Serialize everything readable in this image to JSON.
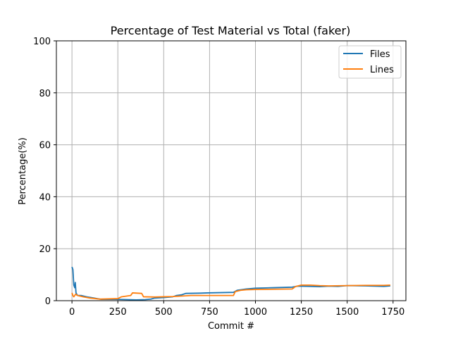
{
  "chart_data": {
    "type": "line",
    "title": "Percentage of Test Material vs Total (faker)",
    "xlabel": "Commit #",
    "ylabel": "Percentage(%)",
    "xlim": [
      -85,
      1820
    ],
    "ylim": [
      0,
      100
    ],
    "xticks": [
      0,
      250,
      500,
      750,
      1000,
      1250,
      1500,
      1750
    ],
    "yticks": [
      0,
      20,
      40,
      60,
      80,
      100
    ],
    "grid": true,
    "legend_position": "top-right",
    "series": [
      {
        "name": "Files",
        "color": "#1f77b4",
        "points": [
          [
            0,
            13
          ],
          [
            5,
            12
          ],
          [
            10,
            6
          ],
          [
            15,
            5
          ],
          [
            18,
            7
          ],
          [
            22,
            3
          ],
          [
            30,
            2
          ],
          [
            50,
            2
          ],
          [
            80,
            1.5
          ],
          [
            120,
            1
          ],
          [
            160,
            0.5
          ],
          [
            250,
            0.5
          ],
          [
            300,
            0.4
          ],
          [
            350,
            0.3
          ],
          [
            400,
            0.4
          ],
          [
            430,
            0.6
          ],
          [
            450,
            1.0
          ],
          [
            500,
            1.2
          ],
          [
            550,
            1.5
          ],
          [
            570,
            2.0
          ],
          [
            600,
            2.3
          ],
          [
            620,
            2.8
          ],
          [
            700,
            2.9
          ],
          [
            740,
            3.0
          ],
          [
            880,
            3.2
          ],
          [
            900,
            4.0
          ],
          [
            950,
            4.5
          ],
          [
            1000,
            4.8
          ],
          [
            1100,
            5.0
          ],
          [
            1200,
            5.2
          ],
          [
            1230,
            5.6
          ],
          [
            1300,
            5.5
          ],
          [
            1350,
            5.4
          ],
          [
            1400,
            5.6
          ],
          [
            1450,
            5.5
          ],
          [
            1500,
            5.8
          ],
          [
            1600,
            5.7
          ],
          [
            1650,
            5.6
          ],
          [
            1700,
            5.5
          ],
          [
            1735,
            5.7
          ]
        ]
      },
      {
        "name": "Lines",
        "color": "#ff7f0e",
        "points": [
          [
            0,
            3
          ],
          [
            5,
            2
          ],
          [
            10,
            1.5
          ],
          [
            20,
            2.5
          ],
          [
            30,
            2
          ],
          [
            60,
            1.5
          ],
          [
            100,
            1
          ],
          [
            150,
            0.6
          ],
          [
            250,
            0.8
          ],
          [
            270,
            1.5
          ],
          [
            320,
            2
          ],
          [
            330,
            3
          ],
          [
            380,
            2.8
          ],
          [
            390,
            1.5
          ],
          [
            450,
            1.4
          ],
          [
            500,
            1.5
          ],
          [
            550,
            1.6
          ],
          [
            600,
            1.8
          ],
          [
            650,
            2.0
          ],
          [
            880,
            2.0
          ],
          [
            890,
            3.5
          ],
          [
            920,
            4.0
          ],
          [
            950,
            4.2
          ],
          [
            1000,
            4.3
          ],
          [
            1100,
            4.4
          ],
          [
            1200,
            4.5
          ],
          [
            1220,
            5.5
          ],
          [
            1250,
            6.0
          ],
          [
            1300,
            6.0
          ],
          [
            1350,
            5.8
          ],
          [
            1400,
            5.7
          ],
          [
            1500,
            5.8
          ],
          [
            1600,
            5.9
          ],
          [
            1700,
            5.9
          ],
          [
            1735,
            6.0
          ]
        ]
      }
    ]
  }
}
